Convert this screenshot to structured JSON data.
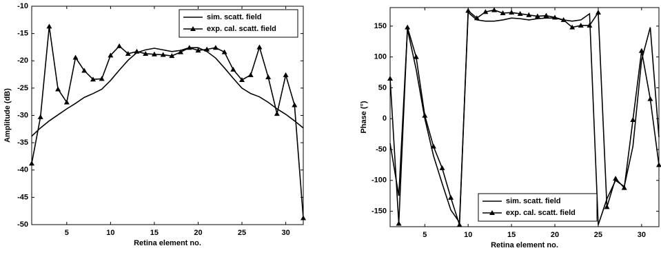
{
  "chart_data": [
    {
      "type": "line",
      "xlabel": "Retina element no.",
      "ylabel": "Amplitude (dB)",
      "x": [
        1,
        2,
        3,
        4,
        5,
        6,
        7,
        8,
        9,
        10,
        11,
        12,
        13,
        14,
        15,
        16,
        17,
        18,
        19,
        20,
        21,
        22,
        23,
        24,
        25,
        26,
        27,
        28,
        29,
        30,
        31,
        32
      ],
      "xlim": [
        1,
        32
      ],
      "xticks": [
        5,
        10,
        15,
        20,
        25,
        30
      ],
      "ylim": [
        -50,
        -10
      ],
      "yticks": [
        -10,
        -15,
        -20,
        -25,
        -30,
        -35,
        -40,
        -45,
        -50
      ],
      "legend": "upper right",
      "series": [
        {
          "name": "sim. scatt. field",
          "color": "#000000",
          "marker": "none",
          "values": [
            -33.8,
            -32.3,
            -31.0,
            -29.9,
            -28.8,
            -27.8,
            -26.7,
            -26.0,
            -25.2,
            -23.6,
            -21.7,
            -19.9,
            -18.5,
            -18.0,
            -17.7,
            -18.0,
            -18.3,
            -18.1,
            -17.6,
            -17.6,
            -18.3,
            -19.5,
            -21.3,
            -23.2,
            -25.0,
            -26.0,
            -26.6,
            -27.6,
            -28.8,
            -29.8,
            -31.0,
            -32.3
          ]
        },
        {
          "name": "exp. cal. scatt. field",
          "color": "#000000",
          "marker": "triangle",
          "values": [
            -38.8,
            -30.3,
            -13.7,
            -25.2,
            -27.6,
            -19.4,
            -21.8,
            -23.4,
            -23.3,
            -19.0,
            -17.3,
            -18.7,
            -18.3,
            -18.7,
            -18.8,
            -18.9,
            -19.1,
            -18.4,
            -17.6,
            -18.1,
            -17.9,
            -17.6,
            -18.4,
            -21.6,
            -23.5,
            -22.6,
            -17.5,
            -23.0,
            -29.7,
            -22.6,
            -28.1,
            -48.8
          ]
        }
      ]
    },
    {
      "type": "line",
      "xlabel": "Retina element no.",
      "ylabel": "Phase (°)",
      "x": [
        1,
        2,
        3,
        4,
        5,
        6,
        7,
        8,
        9,
        10,
        11,
        12,
        13,
        14,
        15,
        16,
        17,
        18,
        19,
        20,
        21,
        22,
        23,
        24,
        25,
        26,
        27,
        28,
        29,
        30,
        31,
        32
      ],
      "xlim": [
        1,
        32
      ],
      "xticks": [
        5,
        10,
        15,
        20,
        25,
        30
      ],
      "ylim": [
        -175,
        180
      ],
      "yticks": [
        150,
        100,
        50,
        0,
        -50,
        -100,
        -150
      ],
      "legend": "lower left",
      "series": [
        {
          "name": "sim. scatt. field",
          "color": "#000000",
          "marker": "none",
          "values": [
            -40,
            -125,
            145,
            80,
            0,
            -60,
            -105,
            -148,
            -168,
            172,
            160,
            158,
            158,
            160,
            163,
            162,
            160,
            162,
            163,
            163,
            160,
            158,
            160,
            170,
            -172,
            -130,
            -100,
            -110,
            -45,
            95,
            148,
            -30
          ]
        },
        {
          "name": "exp. cal. scatt. field",
          "color": "#000000",
          "marker": "triangle",
          "values": [
            65,
            -170,
            148,
            100,
            5,
            -45,
            -80,
            -128,
            -172,
            175,
            163,
            173,
            176,
            171,
            172,
            170,
            168,
            166,
            167,
            164,
            160,
            148,
            151,
            151,
            172,
            -143,
            -97,
            -112,
            -2,
            110,
            32,
            -75
          ]
        }
      ]
    }
  ]
}
